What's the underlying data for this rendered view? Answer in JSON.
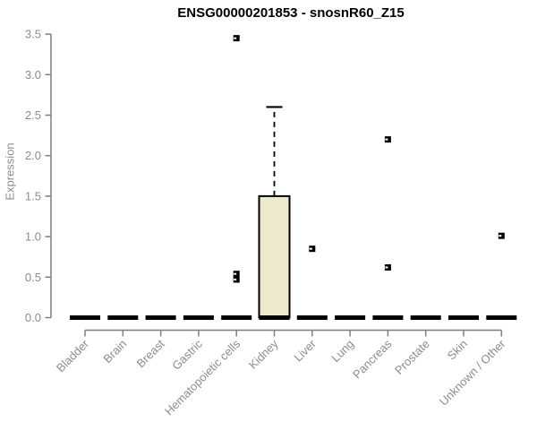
{
  "chart_data": {
    "type": "boxplot",
    "title": "ENSG00000201853 - snosnR60_Z15",
    "ylabel": "Expression",
    "xlabel": "",
    "ylim": [
      0,
      3.5
    ],
    "ytick_step": 0.5,
    "grid": false,
    "legend": "none",
    "categories": [
      "Bladder",
      "Brain",
      "Breast",
      "Gastric",
      "Hematopoietic cells",
      "Kidney",
      "Liver",
      "Lung",
      "Pancreas",
      "Prostate",
      "Skin",
      "Unknown / Other"
    ],
    "series": [
      {
        "name": "Bladder",
        "q1": 0,
        "median": 0,
        "q3": 0,
        "whisker_low": 0,
        "whisker_high": 0,
        "outliers": []
      },
      {
        "name": "Brain",
        "q1": 0,
        "median": 0,
        "q3": 0,
        "whisker_low": 0,
        "whisker_high": 0,
        "outliers": []
      },
      {
        "name": "Breast",
        "q1": 0,
        "median": 0,
        "q3": 0,
        "whisker_low": 0,
        "whisker_high": 0,
        "outliers": []
      },
      {
        "name": "Gastric",
        "q1": 0,
        "median": 0,
        "q3": 0,
        "whisker_low": 0,
        "whisker_high": 0,
        "outliers": []
      },
      {
        "name": "Hematopoietic cells",
        "q1": 0,
        "median": 0,
        "q3": 0,
        "whisker_low": 0,
        "whisker_high": 0,
        "outliers": [
          3.45,
          0.54,
          0.47
        ]
      },
      {
        "name": "Kidney",
        "q1": 0,
        "median": 0,
        "q3": 1.5,
        "whisker_low": 0,
        "whisker_high": 2.6,
        "outliers": []
      },
      {
        "name": "Liver",
        "q1": 0,
        "median": 0,
        "q3": 0,
        "whisker_low": 0,
        "whisker_high": 0,
        "outliers": [
          0.85
        ]
      },
      {
        "name": "Lung",
        "q1": 0,
        "median": 0,
        "q3": 0,
        "whisker_low": 0,
        "whisker_high": 0,
        "outliers": []
      },
      {
        "name": "Pancreas",
        "q1": 0,
        "median": 0,
        "q3": 0,
        "whisker_low": 0,
        "whisker_high": 0,
        "outliers": [
          2.2,
          0.62
        ]
      },
      {
        "name": "Prostate",
        "q1": 0,
        "median": 0,
        "q3": 0,
        "whisker_low": 0,
        "whisker_high": 0,
        "outliers": []
      },
      {
        "name": "Skin",
        "q1": 0,
        "median": 0,
        "q3": 0,
        "whisker_low": 0,
        "whisker_high": 0,
        "outliers": []
      },
      {
        "name": "Unknown / Other",
        "q1": 0,
        "median": 0,
        "q3": 0,
        "whisker_low": 0,
        "whisker_high": 0,
        "outliers": [
          1.01
        ]
      }
    ],
    "colors": {
      "box_fill": "#EEE8CD",
      "box_stroke": "#000000",
      "median": "#000000",
      "outlier": "#000000",
      "axis": "#7f7f7f",
      "tick_label": "#8c8c8c",
      "title": "#000000",
      "background": "#ffffff"
    }
  }
}
